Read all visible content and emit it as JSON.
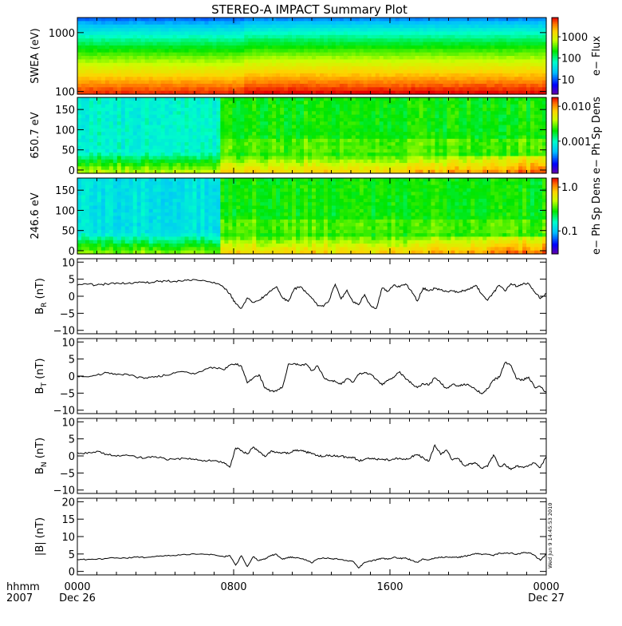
{
  "title": "STEREO-A IMPACT Summary Plot",
  "stamp": "Wed Jun  9 14:45:53 2010",
  "time_axis": {
    "row_label_1": "hhmm",
    "row_label_2": "2007",
    "ticks": [
      {
        "hour": 0,
        "label": "0000",
        "date": "Dec 26"
      },
      {
        "hour": 8,
        "label": "0800",
        "date": ""
      },
      {
        "hour": 16,
        "label": "1600",
        "date": ""
      },
      {
        "hour": 24,
        "label": "0000",
        "date": "Dec 27"
      }
    ]
  },
  "chart_data": [
    {
      "type": "heatmap",
      "id": "swea",
      "ylabel": "SWEA (eV)",
      "yscale": "log",
      "ylim": [
        90,
        1800
      ],
      "yticks": [
        {
          "v": 1000,
          "label": "1000"
        },
        {
          "v": 100,
          "label": "100"
        }
      ],
      "colorbar_label": "e− Flux",
      "colorbar_scale": "log",
      "colorbar_ticks": [
        {
          "v": 1000,
          "label": "1000"
        },
        {
          "v": 100,
          "label": "100"
        },
        {
          "v": 10,
          "label": "10"
        }
      ],
      "colorbar_range": [
        2,
        8000
      ]
    },
    {
      "type": "heatmap",
      "id": "pad650",
      "ylabel": "650.7 eV",
      "ylim": [
        -8,
        180
      ],
      "yticks": [
        {
          "v": 0,
          "label": "0"
        },
        {
          "v": 50,
          "label": "50"
        },
        {
          "v": 100,
          "label": "100"
        },
        {
          "v": 150,
          "label": "150"
        }
      ],
      "colorbar_label": "e−  Ph Sp Dens",
      "colorbar_scale": "log",
      "colorbar_ticks": [
        {
          "v": 0.01,
          "label": "0.010"
        },
        {
          "v": 0.001,
          "label": "0.001"
        }
      ],
      "colorbar_range": [
        0.00012,
        0.018
      ]
    },
    {
      "type": "heatmap",
      "id": "pad246",
      "ylabel": "246.6 eV",
      "ylim": [
        -8,
        180
      ],
      "yticks": [
        {
          "v": 0,
          "label": "0"
        },
        {
          "v": 50,
          "label": "50"
        },
        {
          "v": 100,
          "label": "100"
        },
        {
          "v": 150,
          "label": "150"
        }
      ],
      "colorbar_label": "e−  Ph Sp Dens",
      "colorbar_scale": "log",
      "colorbar_ticks": [
        {
          "v": 1.0,
          "label": "1.0"
        },
        {
          "v": 0.1,
          "label": "0.1"
        }
      ],
      "colorbar_range": [
        0.03,
        1.6
      ]
    },
    {
      "type": "line",
      "id": "br",
      "ylabel_main": "B",
      "ylabel_sub": "R",
      "ylabel_unit": " (nT)",
      "ylim": [
        -11,
        11
      ],
      "yticks": [
        {
          "v": 10,
          "label": "10"
        },
        {
          "v": 5,
          "label": "5"
        },
        {
          "v": 0,
          "label": "0"
        },
        {
          "v": -5,
          "label": "−5"
        },
        {
          "v": -10,
          "label": "−10"
        }
      ],
      "x": [
        0,
        0.5,
        1,
        1.5,
        2,
        2.5,
        3,
        3.5,
        4,
        4.5,
        5,
        5.5,
        6,
        6.5,
        7,
        7.5,
        7.8,
        8.1,
        8.4,
        8.7,
        9,
        9.3,
        9.6,
        9.9,
        10.2,
        10.5,
        10.8,
        11.1,
        11.4,
        11.7,
        12,
        12.3,
        12.6,
        12.9,
        13.2,
        13.5,
        13.8,
        14.1,
        14.4,
        14.7,
        15,
        15.3,
        15.6,
        15.9,
        16.2,
        16.5,
        16.8,
        17.1,
        17.4,
        17.7,
        18,
        18.3,
        18.6,
        18.9,
        19.2,
        19.5,
        19.8,
        20.1,
        20.4,
        20.7,
        21,
        21.3,
        21.6,
        21.9,
        22.2,
        22.5,
        22.8,
        23.1,
        23.4,
        23.7,
        24
      ],
      "values": [
        3.2,
        3.5,
        3.3,
        3.6,
        3.9,
        3.7,
        4.1,
        3.9,
        4.3,
        4.5,
        4.4,
        4.8,
        4.9,
        4.6,
        4.1,
        2.5,
        0.8,
        -2.2,
        -3.5,
        -0.5,
        -1.8,
        -1.2,
        0.2,
        1.5,
        2.8,
        -0.5,
        -1.5,
        2.1,
        2.8,
        1.2,
        -0.6,
        -2.8,
        -3.0,
        -1.0,
        3.5,
        -0.8,
        1.8,
        -1.6,
        -2.5,
        0.5,
        -2.7,
        -3.6,
        2.4,
        1.5,
        3.3,
        2.7,
        3.6,
        1.6,
        -1.4,
        2.4,
        1.6,
        2.3,
        1.9,
        1.4,
        1.6,
        1.1,
        1.7,
        2.2,
        3.2,
        0.6,
        -1.2,
        1.1,
        3.2,
        1.5,
        3.7,
        2.9,
        3.6,
        3.7,
        1.3,
        -0.7,
        0.8
      ]
    },
    {
      "type": "line",
      "id": "bt",
      "ylabel_main": "B",
      "ylabel_sub": "T",
      "ylabel_unit": " (nT)",
      "ylim": [
        -11,
        11
      ],
      "yticks": [
        {
          "v": 10,
          "label": "10"
        },
        {
          "v": 5,
          "label": "5"
        },
        {
          "v": 0,
          "label": "0"
        },
        {
          "v": -5,
          "label": "−5"
        },
        {
          "v": -10,
          "label": "−10"
        }
      ],
      "x": [
        0,
        0.5,
        1,
        1.5,
        2,
        2.5,
        3,
        3.5,
        4,
        4.5,
        5,
        5.5,
        6,
        6.5,
        7,
        7.5,
        7.8,
        8.1,
        8.4,
        8.7,
        9,
        9.3,
        9.6,
        9.9,
        10.2,
        10.5,
        10.8,
        11.1,
        11.4,
        11.7,
        12,
        12.3,
        12.6,
        12.9,
        13.2,
        13.5,
        13.8,
        14.1,
        14.4,
        14.7,
        15,
        15.3,
        15.6,
        15.9,
        16.2,
        16.5,
        16.8,
        17.1,
        17.4,
        17.7,
        18,
        18.3,
        18.6,
        18.9,
        19.2,
        19.5,
        19.8,
        20.1,
        20.4,
        20.7,
        21,
        21.3,
        21.6,
        21.9,
        22.2,
        22.5,
        22.8,
        23.1,
        23.4,
        23.7,
        24
      ],
      "values": [
        0.0,
        -0.2,
        0.3,
        1.0,
        0.4,
        0.6,
        -0.3,
        -0.5,
        -0.1,
        0.2,
        0.9,
        1.2,
        0.6,
        1.9,
        2.6,
        1.8,
        3.2,
        3.6,
        2.9,
        -2.0,
        -0.6,
        0.4,
        -3.5,
        -4.3,
        -4.4,
        -3.2,
        3.5,
        3.7,
        3.2,
        3.6,
        1.6,
        3.0,
        -0.3,
        -1.4,
        -1.6,
        -2.4,
        -0.8,
        -1.8,
        0.4,
        1.1,
        0.6,
        -0.9,
        -2.6,
        -1.3,
        -0.4,
        1.3,
        -0.9,
        -2.1,
        -3.4,
        -2.2,
        -2.6,
        -0.5,
        -2.1,
        -3.6,
        -2.4,
        -3.0,
        -2.3,
        -2.9,
        -4.0,
        -5.2,
        -3.7,
        -1.1,
        -0.3,
        4.0,
        3.1,
        -0.9,
        -1.2,
        -0.3,
        -3.3,
        -3.1,
        -4.8
      ]
    },
    {
      "type": "line",
      "id": "bn",
      "ylabel_main": "B",
      "ylabel_sub": "N",
      "ylabel_unit": " (nT)",
      "ylim": [
        -11,
        11
      ],
      "yticks": [
        {
          "v": 10,
          "label": "10"
        },
        {
          "v": 5,
          "label": "5"
        },
        {
          "v": 0,
          "label": "0"
        },
        {
          "v": -5,
          "label": "−5"
        },
        {
          "v": -10,
          "label": "−10"
        }
      ],
      "x": [
        0,
        0.5,
        1,
        1.5,
        2,
        2.5,
        3,
        3.5,
        4,
        4.5,
        5,
        5.5,
        6,
        6.5,
        7,
        7.5,
        7.8,
        8.1,
        8.4,
        8.7,
        9,
        9.3,
        9.6,
        9.9,
        10.2,
        10.5,
        10.8,
        11.1,
        11.4,
        11.7,
        12,
        12.3,
        12.6,
        12.9,
        13.2,
        13.5,
        13.8,
        14.1,
        14.4,
        14.7,
        15,
        15.3,
        15.6,
        15.9,
        16.2,
        16.5,
        16.8,
        17.1,
        17.4,
        17.7,
        18,
        18.3,
        18.6,
        18.9,
        19.2,
        19.5,
        19.8,
        20.1,
        20.4,
        20.7,
        21,
        21.3,
        21.6,
        21.9,
        22.2,
        22.5,
        22.8,
        23.1,
        23.4,
        23.7,
        24
      ],
      "values": [
        1.0,
        0.7,
        1.4,
        0.5,
        -0.1,
        0.3,
        -0.4,
        -0.6,
        -0.2,
        -0.9,
        -1.0,
        -0.7,
        -1.1,
        -1.3,
        -1.4,
        -1.9,
        -3.3,
        2.3,
        1.6,
        0.6,
        2.6,
        1.1,
        -0.2,
        1.4,
        1.2,
        1.0,
        0.7,
        1.5,
        1.6,
        1.2,
        0.6,
        0.2,
        -0.2,
        0.3,
        -0.1,
        0.0,
        -0.5,
        -0.3,
        -1.4,
        -1.0,
        -0.8,
        -1.0,
        -0.9,
        -1.2,
        -1.0,
        -0.6,
        -1.1,
        -0.3,
        0.4,
        -0.5,
        -1.5,
        3.2,
        0.4,
        1.7,
        -1.2,
        -0.8,
        -2.8,
        -2.3,
        -2.2,
        -3.6,
        -3.1,
        0.3,
        -3.0,
        -2.5,
        -4.0,
        -3.0,
        -3.2,
        -2.8,
        -2.1,
        -3.4,
        -0.2
      ]
    },
    {
      "type": "line",
      "id": "bmag",
      "ylabel_main": "|B| (nT)",
      "ylim": [
        -1,
        21
      ],
      "yticks": [
        {
          "v": 20,
          "label": "20"
        },
        {
          "v": 15,
          "label": "15"
        },
        {
          "v": 10,
          "label": "10"
        },
        {
          "v": 5,
          "label": "5"
        },
        {
          "v": 0,
          "label": "0"
        }
      ],
      "x": [
        0,
        0.5,
        1,
        1.5,
        2,
        2.5,
        3,
        3.5,
        4,
        4.5,
        5,
        5.5,
        6,
        6.5,
        7,
        7.5,
        7.8,
        8.1,
        8.4,
        8.7,
        9,
        9.3,
        9.6,
        9.9,
        10.2,
        10.5,
        10.8,
        11.1,
        11.4,
        11.7,
        12,
        12.3,
        12.6,
        12.9,
        13.2,
        13.5,
        13.8,
        14.1,
        14.4,
        14.7,
        15,
        15.3,
        15.6,
        15.9,
        16.2,
        16.5,
        16.8,
        17.1,
        17.4,
        17.7,
        18,
        18.3,
        18.6,
        18.9,
        19.2,
        19.5,
        19.8,
        20.1,
        20.4,
        20.7,
        21,
        21.3,
        21.6,
        21.9,
        22.2,
        22.5,
        22.8,
        23.1,
        23.4,
        23.7,
        24
      ],
      "values": [
        3.4,
        3.4,
        3.5,
        3.7,
        3.9,
        3.8,
        4.1,
        4.0,
        4.3,
        4.6,
        4.5,
        4.9,
        5.0,
        4.9,
        4.8,
        4.2,
        4.6,
        1.8,
        4.5,
        1.4,
        4.2,
        3.1,
        3.5,
        4.6,
        4.9,
        3.5,
        4.1,
        4.0,
        3.7,
        3.4,
        2.4,
        3.6,
        3.9,
        3.7,
        3.6,
        3.4,
        3.1,
        2.9,
        1.0,
        2.6,
        3.0,
        3.3,
        3.8,
        3.5,
        4.1,
        3.7,
        3.9,
        3.2,
        2.6,
        3.6,
        3.3,
        3.9,
        4.0,
        4.2,
        4.1,
        4.0,
        4.4,
        4.6,
        5.2,
        4.8,
        4.9,
        4.5,
        5.3,
        5.2,
        5.3,
        4.9,
        5.3,
        5.4,
        4.6,
        3.2,
        4.9
      ]
    }
  ]
}
